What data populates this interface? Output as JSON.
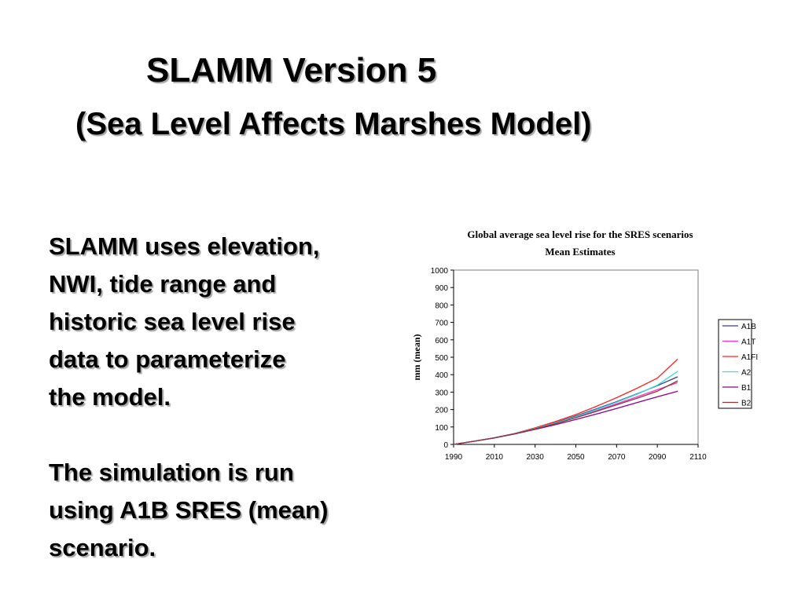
{
  "slide": {
    "title_line1": "SLAMM Version 5",
    "title_line2": "(Sea Level Affects Marshes Model)",
    "paragraph1": "SLAMM uses elevation,\nNWI, tide range and\nhistoric sea level rise\ndata to parameterize\nthe model.",
    "paragraph2": "The simulation is run\nusing A1B SRES (mean)\nscenario."
  },
  "chart_data": {
    "type": "line",
    "title": "Global average sea level rise for the SRES scenarios",
    "subtitle": "Mean Estimates",
    "xlabel": "",
    "ylabel": "mm (mean)",
    "xlim": [
      1990,
      2110
    ],
    "ylim": [
      0,
      1000
    ],
    "x_ticks": [
      1990,
      2010,
      2030,
      2050,
      2070,
      2090,
      2110
    ],
    "y_ticks": [
      0,
      100,
      200,
      300,
      400,
      500,
      600,
      700,
      800,
      900,
      1000
    ],
    "grid": false,
    "legend_position": "right",
    "x": [
      1990,
      2000,
      2010,
      2020,
      2030,
      2040,
      2050,
      2060,
      2070,
      2080,
      2090,
      2100
    ],
    "series": [
      {
        "name": "A1B",
        "color": "#3b3b8a",
        "values": [
          0,
          18,
          38,
          62,
          92,
          125,
          163,
          203,
          245,
          290,
          337,
          388
        ]
      },
      {
        "name": "A1T",
        "color": "#ff33cc",
        "values": [
          0,
          18,
          38,
          62,
          90,
          121,
          156,
          193,
          233,
          273,
          314,
          355
        ]
      },
      {
        "name": "A1FI",
        "color": "#ff2222",
        "values": [
          0,
          18,
          38,
          63,
          95,
          131,
          171,
          218,
          268,
          322,
          380,
          489
        ]
      },
      {
        "name": "A2",
        "color": "#33dddd",
        "values": [
          0,
          18,
          38,
          62,
          91,
          123,
          159,
          199,
          242,
          288,
          340,
          420
        ]
      },
      {
        "name": "B1",
        "color": "#8b008b",
        "values": [
          0,
          18,
          37,
          60,
          86,
          113,
          143,
          174,
          206,
          240,
          273,
          305
        ]
      },
      {
        "name": "B2",
        "color": "#8b3a3a",
        "values": [
          0,
          18,
          38,
          61,
          89,
          119,
          153,
          189,
          227,
          265,
          305,
          365
        ]
      }
    ]
  }
}
